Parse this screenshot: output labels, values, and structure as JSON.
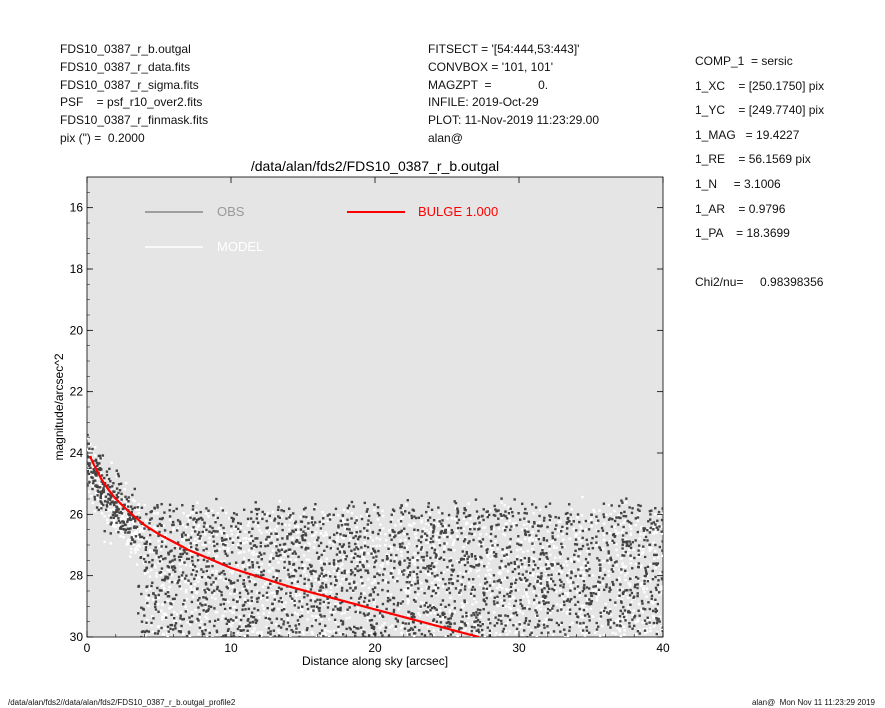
{
  "header_left": [
    "FDS10_0387_r_b.outgal",
    "FDS10_0387_r_data.fits",
    "FDS10_0387_r_sigma.fits",
    "PSF    = psf_r10_over2.fits",
    "FDS10_0387_r_finmask.fits",
    "pix (\") =  0.2000"
  ],
  "header_mid": [
    "FITSECT = '[54:444,53:443]'",
    "CONVBOX = '101, 101'",
    "MAGZPT  =              0.",
    "INFILE: 2019-Oct-29",
    "PLOT: 11-Nov-2019 11:23:29.00",
    "alan@"
  ],
  "header_right": [
    "COMP_1  = sersic",
    "1_XC    = [250.1750] pix",
    "1_YC    = [249.7740] pix",
    "1_MAG   = 19.4227",
    "1_RE    = 56.1569 pix",
    "1_N     = 3.1006",
    "1_AR    = 0.9796",
    "1_PA    = 18.3699",
    "",
    "Chi2/nu=     0.98398356"
  ],
  "footer_left": "/data/alan/fds2//data/alan/fds2/FDS10_0387_r_b.outgal_profile2",
  "footer_right": "alan@  Mon Nov 11 11:23:29 2019",
  "chart_data": {
    "type": "scatter",
    "title": "/data/alan/fds2/FDS10_0387_r_b.outgal",
    "xlabel": "Distance along sky [arcsec]",
    "ylabel": "magnitude/arcsec^2",
    "xlim": [
      0,
      40
    ],
    "ylim": [
      30,
      15
    ],
    "y_inverted": true,
    "xticks": [
      0,
      10,
      20,
      30,
      40
    ],
    "yticks": [
      16,
      18,
      20,
      22,
      24,
      26,
      28,
      30
    ],
    "background_color": "#e5e5e5",
    "legend": [
      {
        "label": "OBS",
        "color": "#888888"
      },
      {
        "label": "MODEL",
        "color": "#ffffff"
      },
      {
        "label": "BULGE  1.000",
        "color": "#ff0000"
      }
    ],
    "bulge_curve": {
      "name": "BULGE  1.000",
      "color": "#ff0000",
      "x": [
        0.2,
        0.5,
        1,
        1.5,
        2,
        3,
        4,
        5,
        6,
        7,
        8,
        10,
        12,
        14,
        16,
        18,
        20,
        22,
        24,
        26,
        27.2
      ],
      "y": [
        24.1,
        24.4,
        24.85,
        25.2,
        25.5,
        25.95,
        26.35,
        26.65,
        26.9,
        27.15,
        27.35,
        27.75,
        28.05,
        28.35,
        28.6,
        28.85,
        29.1,
        29.35,
        29.6,
        29.85,
        30.0
      ]
    },
    "obs_points_description_note_free": "",
    "obs_color": "#444444",
    "model_color": "#ffffff"
  }
}
